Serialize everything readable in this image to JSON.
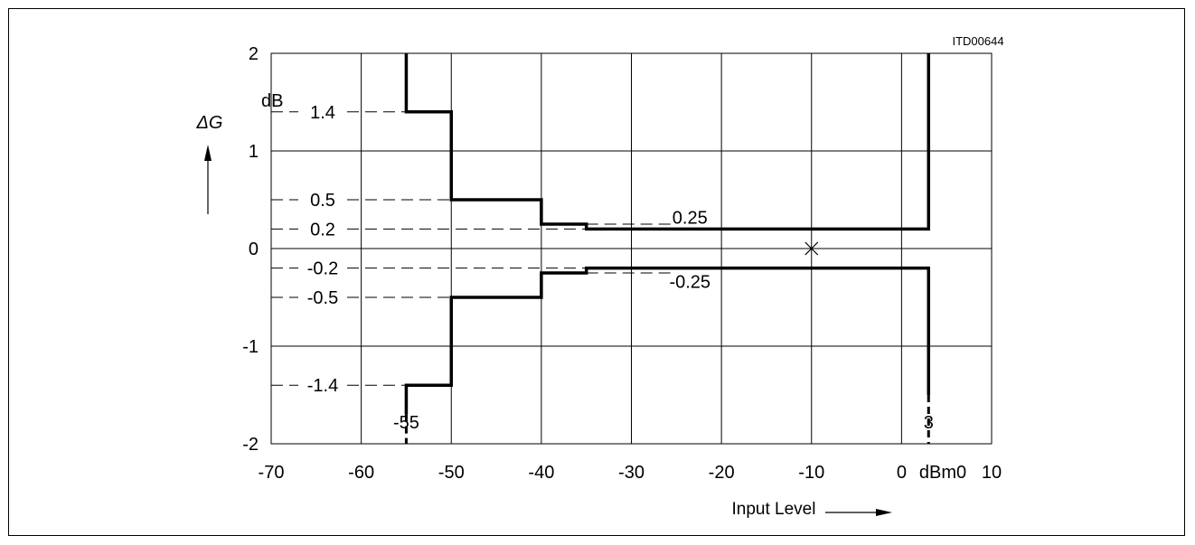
{
  "chart_data": {
    "type": "line",
    "doc_id": "ITD00644",
    "y_axis_label": "ΔG",
    "y_unit": "dB",
    "x_axis_label": "Input Level",
    "x_unit": "dBm0",
    "xlim": [
      -70,
      10
    ],
    "ylim": [
      -2,
      2
    ],
    "grid": true,
    "x_ticks": [
      "-70",
      "-60",
      "-50",
      "-40",
      "-30",
      "-20",
      "-10",
      "0",
      "10"
    ],
    "y_ticks": [
      "2",
      "1",
      "0",
      "-1",
      "-2"
    ],
    "series": [
      {
        "x": [
          -55,
          -55,
          -50,
          -50,
          -40,
          -40,
          -35,
          -35,
          3,
          3
        ],
        "y": [
          2,
          1.4,
          1.4,
          0.5,
          0.5,
          0.25,
          0.25,
          0.2,
          0.2,
          2
        ]
      },
      {
        "x": [
          -55,
          -55,
          -50,
          -50,
          -40,
          -40,
          -35,
          -35,
          3,
          3
        ],
        "y": [
          -1.7,
          -1.4,
          -1.4,
          -0.5,
          -0.5,
          -0.25,
          -0.25,
          -0.2,
          -0.2,
          -1.5
        ]
      }
    ],
    "reference_levels": [
      {
        "label": "1.4",
        "y": 1.4,
        "to_x": -55
      },
      {
        "label": "0.5",
        "y": 0.5,
        "to_x": -50
      },
      {
        "label": "0.2",
        "y": 0.2,
        "to_x": -35
      },
      {
        "label": "-0.2",
        "y": -0.2,
        "to_x": -35
      },
      {
        "label": "-0.5",
        "y": -0.5,
        "to_x": -50
      },
      {
        "label": "-1.4",
        "y": -1.4,
        "to_x": -55
      }
    ],
    "annotations": [
      {
        "text": "0.25",
        "x": -23.5,
        "y": 0.32
      },
      {
        "text": "-0.25",
        "x": -23.5,
        "y": -0.34
      },
      {
        "text": "-55",
        "x": -55,
        "y": -1.78
      },
      {
        "text": "3",
        "x": 3,
        "y": -1.78
      }
    ],
    "reference_point": {
      "x": -10,
      "y": 0,
      "marker": "x-cross"
    },
    "dashed_bottom_extents": [
      {
        "x": -55,
        "y_from": -1.7,
        "y_to": -2
      },
      {
        "x": 3,
        "y_from": -1.5,
        "y_to": -2
      }
    ]
  }
}
